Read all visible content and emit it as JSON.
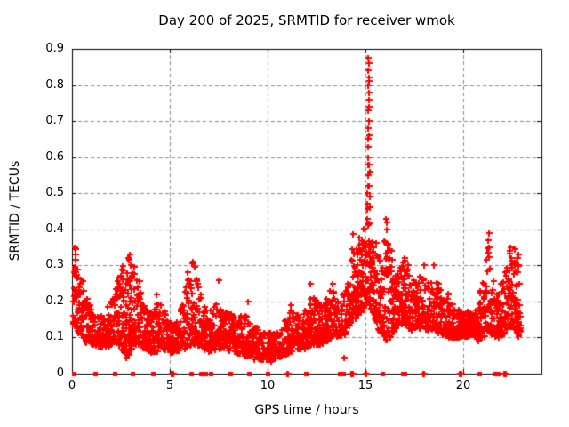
{
  "chart_data": {
    "type": "scatter",
    "title": "Day 200 of 2025, SRMTID for receiver wmok",
    "xlabel": "GPS time / hours",
    "ylabel": "SRMTID / TECUs",
    "xlim": [
      0,
      24
    ],
    "ylim": [
      0,
      0.9
    ],
    "xticks": [
      0,
      5,
      10,
      15,
      20
    ],
    "yticks": [
      0,
      0.1,
      0.2,
      0.3,
      0.4,
      0.5,
      0.6,
      0.7,
      0.8,
      0.9
    ],
    "grid": true,
    "legend": false,
    "marker": "plus",
    "marker_color": "#ff0000",
    "grid_color": "#8c8c8c",
    "axis_color": "#000000",
    "background_color": "#ffffff",
    "seed": 2025200,
    "samples_per_hour": 120,
    "envelope_row_format": [
      "hour",
      "min_tecu",
      "max_tecu",
      "density"
    ],
    "envelope": [
      [
        0.05,
        0.14,
        0.32,
        5
      ],
      [
        0.2,
        0.13,
        0.35,
        6
      ],
      [
        0.35,
        0.11,
        0.3,
        6
      ],
      [
        0.6,
        0.09,
        0.24,
        5
      ],
      [
        0.9,
        0.08,
        0.19,
        5
      ],
      [
        1.2,
        0.08,
        0.16,
        5
      ],
      [
        1.6,
        0.07,
        0.17,
        5
      ],
      [
        2.0,
        0.08,
        0.2,
        5
      ],
      [
        2.3,
        0.09,
        0.26,
        6
      ],
      [
        2.6,
        0.06,
        0.3,
        6
      ],
      [
        2.9,
        0.05,
        0.33,
        6
      ],
      [
        3.1,
        0.08,
        0.31,
        6
      ],
      [
        3.4,
        0.08,
        0.24,
        5
      ],
      [
        3.7,
        0.07,
        0.2,
        5
      ],
      [
        4.0,
        0.06,
        0.17,
        5
      ],
      [
        4.3,
        0.06,
        0.22,
        5
      ],
      [
        4.6,
        0.07,
        0.2,
        5
      ],
      [
        5.0,
        0.06,
        0.14,
        5
      ],
      [
        5.4,
        0.06,
        0.15,
        5
      ],
      [
        5.8,
        0.07,
        0.25,
        5
      ],
      [
        6.1,
        0.08,
        0.28,
        6
      ],
      [
        6.4,
        0.08,
        0.26,
        6
      ],
      [
        6.7,
        0.07,
        0.2,
        5
      ],
      [
        7.0,
        0.06,
        0.17,
        5
      ],
      [
        7.4,
        0.07,
        0.21,
        5
      ],
      [
        7.7,
        0.07,
        0.16,
        5
      ],
      [
        8.0,
        0.06,
        0.18,
        5
      ],
      [
        8.4,
        0.06,
        0.15,
        5
      ],
      [
        8.8,
        0.05,
        0.17,
        5
      ],
      [
        9.2,
        0.05,
        0.14,
        5
      ],
      [
        9.6,
        0.04,
        0.12,
        5
      ],
      [
        10.0,
        0.04,
        0.11,
        5
      ],
      [
        10.4,
        0.04,
        0.12,
        5
      ],
      [
        10.8,
        0.05,
        0.14,
        5
      ],
      [
        11.2,
        0.06,
        0.18,
        5
      ],
      [
        11.6,
        0.07,
        0.16,
        5
      ],
      [
        12.0,
        0.07,
        0.19,
        5
      ],
      [
        12.3,
        0.08,
        0.23,
        5
      ],
      [
        12.7,
        0.08,
        0.18,
        5
      ],
      [
        13.0,
        0.09,
        0.21,
        5
      ],
      [
        13.3,
        0.1,
        0.24,
        5
      ],
      [
        13.6,
        0.1,
        0.21,
        4
      ],
      [
        14.0,
        0.11,
        0.23,
        4
      ],
      [
        14.3,
        0.14,
        0.34,
        6
      ],
      [
        14.6,
        0.16,
        0.4,
        7
      ],
      [
        14.9,
        0.18,
        0.42,
        7
      ],
      [
        15.1,
        0.2,
        0.44,
        7
      ],
      [
        15.35,
        0.17,
        0.4,
        7
      ],
      [
        15.6,
        0.13,
        0.35,
        6
      ],
      [
        15.85,
        0.1,
        0.3,
        6
      ],
      [
        16.05,
        0.09,
        0.42,
        6
      ],
      [
        16.3,
        0.1,
        0.33,
        6
      ],
      [
        16.6,
        0.13,
        0.28,
        6
      ],
      [
        16.95,
        0.14,
        0.32,
        6
      ],
      [
        17.3,
        0.12,
        0.29,
        5
      ],
      [
        17.6,
        0.12,
        0.25,
        5
      ],
      [
        17.9,
        0.13,
        0.29,
        5
      ],
      [
        18.2,
        0.12,
        0.26,
        5
      ],
      [
        18.5,
        0.12,
        0.27,
        5
      ],
      [
        18.9,
        0.11,
        0.23,
        5
      ],
      [
        19.3,
        0.1,
        0.2,
        5
      ],
      [
        19.7,
        0.1,
        0.18,
        5
      ],
      [
        20.1,
        0.1,
        0.17,
        6
      ],
      [
        20.5,
        0.11,
        0.17,
        7
      ],
      [
        20.8,
        0.09,
        0.19,
        6
      ],
      [
        21.1,
        0.1,
        0.32,
        6
      ],
      [
        21.25,
        0.12,
        0.39,
        6
      ],
      [
        21.45,
        0.11,
        0.28,
        5
      ],
      [
        21.7,
        0.1,
        0.23,
        5
      ],
      [
        22.0,
        0.1,
        0.26,
        5
      ],
      [
        22.3,
        0.13,
        0.34,
        6
      ],
      [
        22.55,
        0.13,
        0.3,
        6
      ],
      [
        22.8,
        0.1,
        0.33,
        5
      ],
      [
        22.92,
        0.12,
        0.25,
        4
      ]
    ],
    "spike_points": [
      [
        15.08,
        0.455
      ],
      [
        15.1,
        0.47
      ],
      [
        15.11,
        0.5
      ],
      [
        15.12,
        0.52
      ],
      [
        15.13,
        0.55
      ],
      [
        15.12,
        0.58
      ],
      [
        15.14,
        0.6
      ],
      [
        15.13,
        0.63
      ],
      [
        15.15,
        0.65
      ],
      [
        15.14,
        0.68
      ],
      [
        15.16,
        0.7
      ],
      [
        15.15,
        0.73
      ],
      [
        15.16,
        0.76
      ],
      [
        15.17,
        0.78
      ],
      [
        15.15,
        0.8
      ],
      [
        15.16,
        0.82
      ],
      [
        15.14,
        0.84
      ],
      [
        15.17,
        0.86
      ],
      [
        15.15,
        0.875
      ],
      [
        15.18,
        0.81
      ],
      [
        15.19,
        0.74
      ],
      [
        15.2,
        0.66
      ],
      [
        15.21,
        0.56
      ],
      [
        15.22,
        0.49
      ],
      [
        15.24,
        0.46
      ],
      [
        15.17,
        0.52
      ],
      [
        15.19,
        0.58
      ]
    ],
    "feature_points": [
      [
        0.03,
        0.16
      ],
      [
        0.03,
        0.2
      ],
      [
        0.15,
        0.35
      ],
      [
        0.18,
        0.345
      ],
      [
        0.2,
        0.33
      ],
      [
        2.9,
        0.315
      ],
      [
        2.95,
        0.33
      ],
      [
        3.0,
        0.3
      ],
      [
        6.2,
        0.31
      ],
      [
        6.25,
        0.295
      ],
      [
        5.9,
        0.28
      ],
      [
        7.5,
        0.26
      ],
      [
        4.3,
        0.22
      ],
      [
        9.0,
        0.2
      ],
      [
        11.2,
        0.19
      ],
      [
        12.2,
        0.25
      ],
      [
        13.3,
        0.25
      ],
      [
        16.05,
        0.43
      ],
      [
        16.1,
        0.42
      ],
      [
        16.08,
        0.4
      ],
      [
        17.0,
        0.32
      ],
      [
        18.0,
        0.3
      ],
      [
        18.5,
        0.3
      ],
      [
        21.3,
        0.39
      ],
      [
        21.28,
        0.37
      ],
      [
        21.3,
        0.35
      ],
      [
        22.4,
        0.35
      ],
      [
        22.38,
        0.34
      ],
      [
        22.8,
        0.33
      ],
      [
        22.82,
        0.3
      ],
      [
        10.2,
        0.035
      ],
      [
        2.75,
        0.045
      ],
      [
        9.3,
        0.04
      ],
      [
        13.9,
        0.045
      ]
    ],
    "zero_squares": [
      0.1,
      1.2,
      2.2,
      3.1,
      4.15,
      6.1,
      6.6,
      6.7,
      6.8,
      7.1,
      8.1,
      9.05,
      10.0,
      11.95,
      13.7,
      13.85,
      15.85,
      16.9,
      17.0,
      20.8,
      21.6,
      21.75
    ],
    "zero_plus_marks": [
      5.1,
      5.2,
      11.0,
      11.05,
      14.25,
      14.35,
      15.0,
      15.05,
      17.95,
      18.0,
      19.8,
      19.9,
      22.1,
      22.2
    ]
  }
}
